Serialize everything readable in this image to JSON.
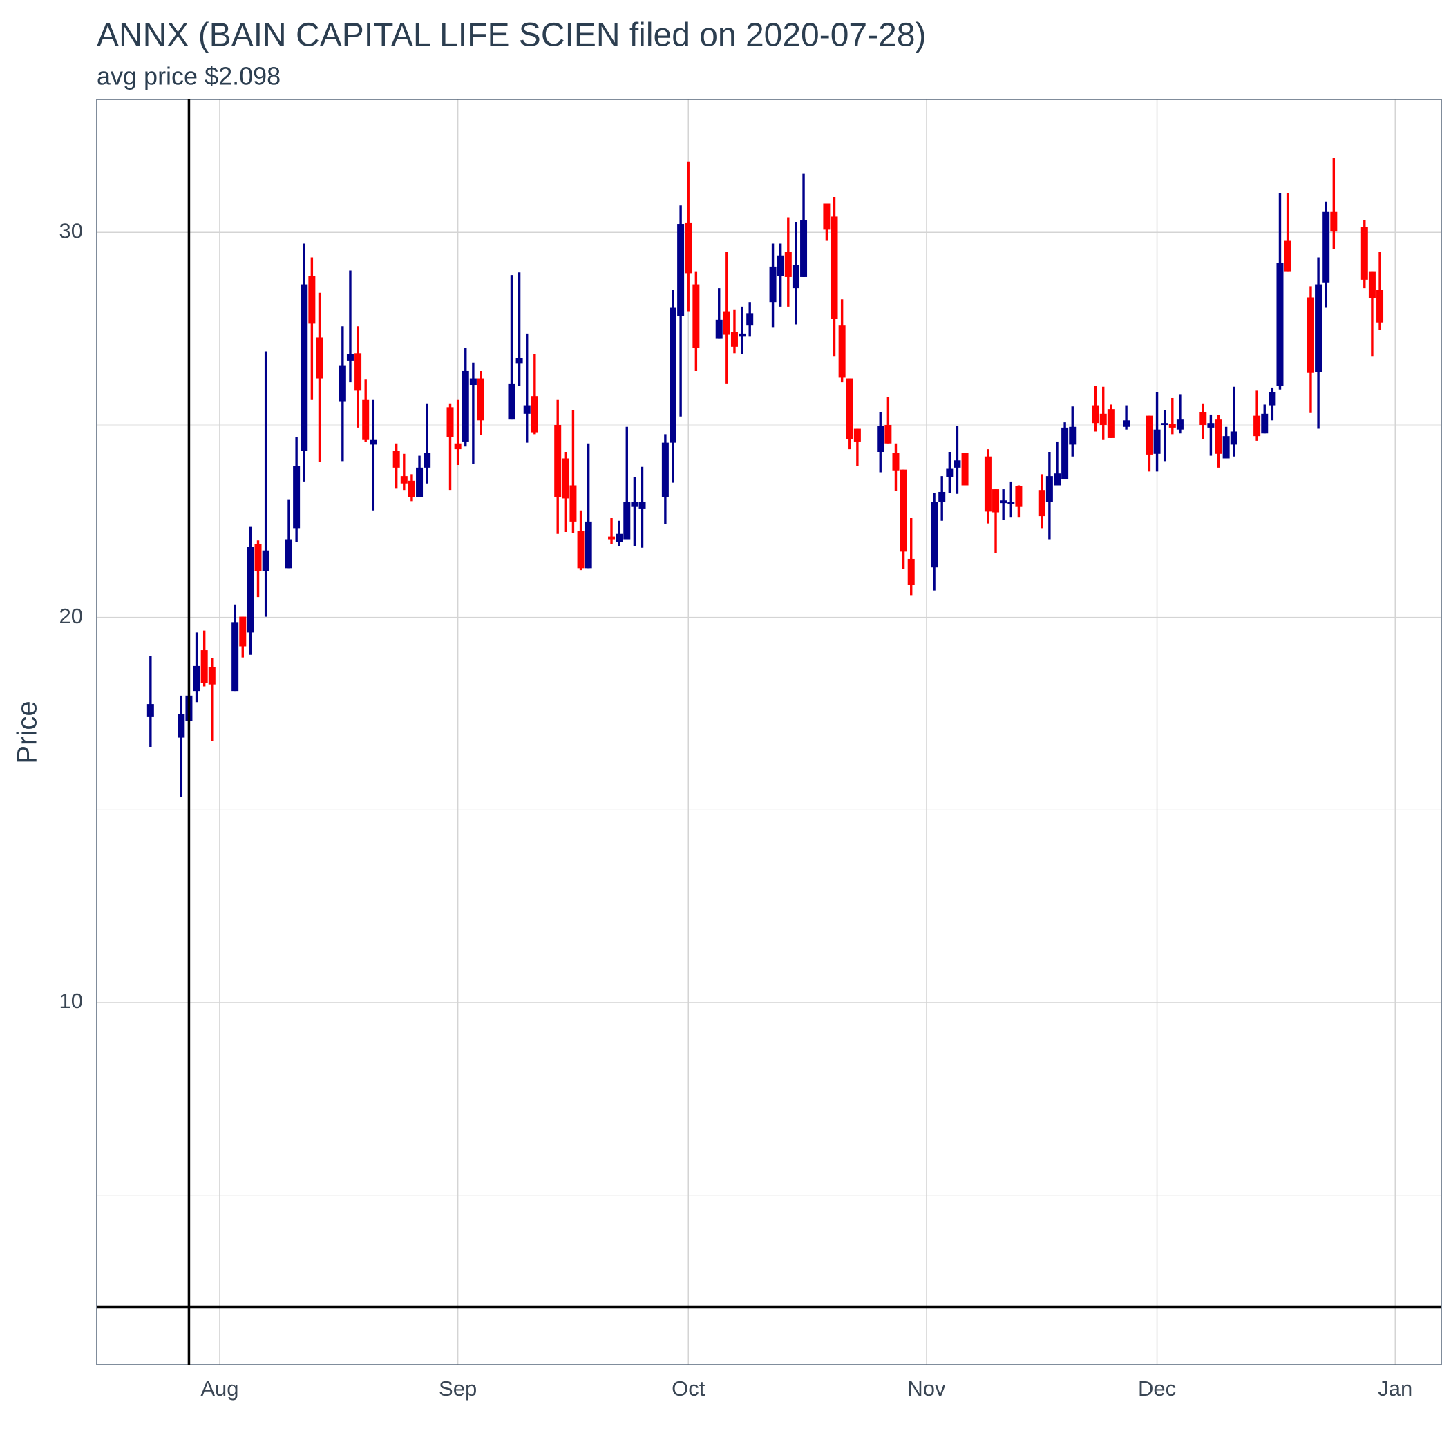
{
  "chart_data": {
    "type": "candlestick",
    "title": "ANNX (BAIN CAPITAL LIFE SCIEN filed on 2020-07-28)",
    "subtitle": "avg price $2.098",
    "ylabel": "Price",
    "x": [
      "2020-07-23",
      "2020-07-27",
      "2020-07-28",
      "2020-07-29",
      "2020-07-30",
      "2020-07-31",
      "2020-08-03",
      "2020-08-04",
      "2020-08-05",
      "2020-08-06",
      "2020-08-07",
      "2020-08-10",
      "2020-08-11",
      "2020-08-12",
      "2020-08-13",
      "2020-08-14",
      "2020-08-17",
      "2020-08-18",
      "2020-08-19",
      "2020-08-20",
      "2020-08-21",
      "2020-08-24",
      "2020-08-25",
      "2020-08-26",
      "2020-08-27",
      "2020-08-28",
      "2020-08-31",
      "2020-09-01",
      "2020-09-02",
      "2020-09-03",
      "2020-09-04",
      "2020-09-08",
      "2020-09-09",
      "2020-09-10",
      "2020-09-11",
      "2020-09-14",
      "2020-09-15",
      "2020-09-16",
      "2020-09-17",
      "2020-09-18",
      "2020-09-21",
      "2020-09-22",
      "2020-09-23",
      "2020-09-24",
      "2020-09-25",
      "2020-09-28",
      "2020-09-29",
      "2020-09-30",
      "2020-10-01",
      "2020-10-02",
      "2020-10-05",
      "2020-10-06",
      "2020-10-07",
      "2020-10-08",
      "2020-10-09",
      "2020-10-12",
      "2020-10-13",
      "2020-10-14",
      "2020-10-15",
      "2020-10-16",
      "2020-10-19",
      "2020-10-20",
      "2020-10-21",
      "2020-10-22",
      "2020-10-23",
      "2020-10-26",
      "2020-10-27",
      "2020-10-28",
      "2020-10-29",
      "2020-10-30",
      "2020-11-02",
      "2020-11-03",
      "2020-11-04",
      "2020-11-05",
      "2020-11-06",
      "2020-11-09",
      "2020-11-10",
      "2020-11-11",
      "2020-11-12",
      "2020-11-13",
      "2020-11-16",
      "2020-11-17",
      "2020-11-18",
      "2020-11-19",
      "2020-11-20",
      "2020-11-23",
      "2020-11-24",
      "2020-11-25",
      "2020-11-27",
      "2020-11-30",
      "2020-12-01",
      "2020-12-02",
      "2020-12-03",
      "2020-12-04",
      "2020-12-07",
      "2020-12-08",
      "2020-12-09",
      "2020-12-10",
      "2020-12-11",
      "2020-12-14",
      "2020-12-15",
      "2020-12-16",
      "2020-12-17",
      "2020-12-18",
      "2020-12-21",
      "2020-12-22",
      "2020-12-23",
      "2020-12-24",
      "2020-12-28",
      "2020-12-29",
      "2020-12-30"
    ],
    "open": [
      17.43,
      16.88,
      17.32,
      18.09,
      19.15,
      18.72,
      18.09,
      20.02,
      19.61,
      21.91,
      21.21,
      21.28,
      22.32,
      24.32,
      28.86,
      27.27,
      25.6,
      26.67,
      26.86,
      25.65,
      24.49,
      24.32,
      23.67,
      23.55,
      23.12,
      23.89,
      25.46,
      24.52,
      24.57,
      26.04,
      26.21,
      25.14,
      26.59,
      25.29,
      25.75,
      25.0,
      24.13,
      23.43,
      22.25,
      21.28,
      22.1,
      21.96,
      22.03,
      22.87,
      22.83,
      23.12,
      24.54,
      27.83,
      30.24,
      28.65,
      27.25,
      27.95,
      27.42,
      27.29,
      27.58,
      28.19,
      28.86,
      29.49,
      28.55,
      28.84,
      30.75,
      30.41,
      27.58,
      26.21,
      24.9,
      24.3,
      25.0,
      24.28,
      23.84,
      21.52,
      21.3,
      23.0,
      23.65,
      23.89,
      24.28,
      24.18,
      23.33,
      22.97,
      22.95,
      23.41,
      23.31,
      23.0,
      23.43,
      23.6,
      24.49,
      25.51,
      25.29,
      25.41,
      24.95,
      25.24,
      24.25,
      25.0,
      25.02,
      24.88,
      25.34,
      24.93,
      25.14,
      24.13,
      24.49,
      25.24,
      24.78,
      25.51,
      26.01,
      29.78,
      28.31,
      26.38,
      28.7,
      30.53,
      30.14,
      28.99,
      28.5
    ],
    "high": [
      19.0,
      17.97,
      17.97,
      19.61,
      19.66,
      18.94,
      20.34,
      20.02,
      22.37,
      22.0,
      26.91,
      23.07,
      24.69,
      29.71,
      29.35,
      28.43,
      27.56,
      29.01,
      27.56,
      26.18,
      25.65,
      24.52,
      24.25,
      23.72,
      24.2,
      25.56,
      25.56,
      25.65,
      27.0,
      26.62,
      26.4,
      28.89,
      28.96,
      27.37,
      26.84,
      25.65,
      24.3,
      25.39,
      22.78,
      24.52,
      22.58,
      22.51,
      24.95,
      23.65,
      23.91,
      24.76,
      28.5,
      30.7,
      31.84,
      28.99,
      28.55,
      29.49,
      28.0,
      28.07,
      28.19,
      29.71,
      29.71,
      30.39,
      30.27,
      31.52,
      30.75,
      30.92,
      28.26,
      26.21,
      24.9,
      25.34,
      25.72,
      24.52,
      23.84,
      22.58,
      23.24,
      23.67,
      24.3,
      24.98,
      24.28,
      24.37,
      23.33,
      23.33,
      23.53,
      23.43,
      23.72,
      24.3,
      24.57,
      25.07,
      25.48,
      26.01,
      25.99,
      25.53,
      25.51,
      25.24,
      25.85,
      25.39,
      25.7,
      25.8,
      25.56,
      25.27,
      25.27,
      24.95,
      25.99,
      25.89,
      25.53,
      25.97,
      31.01,
      31.01,
      28.6,
      29.35,
      30.8,
      31.93,
      30.31,
      28.99,
      29.49
    ],
    "low": [
      16.64,
      15.34,
      17.32,
      17.8,
      18.21,
      16.79,
      18.09,
      18.96,
      19.03,
      20.53,
      20.02,
      21.28,
      21.96,
      23.53,
      25.65,
      24.03,
      24.06,
      26.11,
      24.93,
      24.57,
      22.78,
      23.36,
      23.31,
      23.02,
      23.12,
      23.48,
      23.31,
      23.96,
      24.44,
      23.99,
      24.73,
      25.14,
      26.01,
      24.54,
      24.76,
      22.17,
      22.22,
      22.2,
      21.23,
      21.28,
      21.91,
      21.86,
      22.03,
      21.86,
      21.81,
      22.42,
      23.5,
      25.22,
      27.95,
      26.4,
      27.25,
      26.06,
      26.86,
      26.84,
      27.29,
      27.54,
      28.07,
      28.07,
      27.61,
      28.84,
      29.78,
      26.79,
      26.11,
      24.37,
      23.94,
      23.77,
      24.52,
      23.29,
      21.26,
      20.58,
      20.7,
      22.51,
      23.24,
      23.21,
      23.43,
      22.44,
      21.67,
      22.54,
      22.61,
      22.61,
      22.32,
      22.03,
      23.43,
      23.6,
      24.18,
      24.83,
      24.61,
      24.66,
      24.88,
      23.79,
      23.79,
      24.06,
      24.76,
      24.78,
      24.64,
      24.2,
      23.89,
      24.13,
      24.18,
      24.59,
      24.78,
      25.12,
      25.92,
      28.99,
      25.31,
      24.9,
      28.04,
      29.57,
      28.55,
      26.79,
      27.46
    ],
    "close": [
      17.75,
      17.49,
      17.97,
      18.74,
      18.29,
      18.26,
      19.88,
      19.25,
      21.84,
      21.21,
      21.74,
      22.03,
      23.94,
      28.65,
      27.63,
      26.21,
      26.55,
      26.84,
      25.89,
      24.61,
      24.61,
      23.89,
      23.48,
      23.12,
      23.89,
      24.28,
      24.69,
      24.37,
      26.4,
      26.21,
      25.12,
      26.06,
      26.74,
      25.51,
      24.81,
      23.12,
      23.09,
      22.49,
      21.28,
      22.49,
      22.03,
      22.17,
      23.0,
      23.0,
      23.0,
      24.54,
      28.04,
      30.22,
      28.94,
      27.0,
      27.73,
      27.34,
      27.03,
      27.37,
      27.9,
      29.11,
      29.4,
      28.84,
      29.15,
      30.31,
      30.07,
      27.75,
      26.23,
      24.64,
      24.57,
      24.98,
      24.52,
      23.82,
      21.71,
      20.85,
      23.0,
      23.26,
      23.86,
      24.08,
      23.43,
      22.75,
      22.73,
      23.04,
      23.0,
      22.87,
      22.63,
      23.67,
      23.74,
      24.93,
      24.95,
      25.05,
      25.0,
      24.66,
      25.12,
      24.23,
      24.88,
      25.05,
      24.93,
      25.14,
      25.0,
      25.05,
      24.25,
      24.71,
      24.83,
      24.71,
      25.29,
      25.85,
      29.2,
      28.99,
      26.35,
      28.65,
      30.53,
      30.02,
      28.77,
      28.29,
      27.66
    ],
    "up_color": "#00008b",
    "down_color": "#ff0000",
    "xlim": [
      "2020-07-16",
      "2021-01-07"
    ],
    "xticks": [
      {
        "value": "2020-08-01",
        "label": "Aug"
      },
      {
        "value": "2020-09-01",
        "label": "Sep"
      },
      {
        "value": "2020-10-01",
        "label": "Oct"
      },
      {
        "value": "2020-11-01",
        "label": "Nov"
      },
      {
        "value": "2020-12-01",
        "label": "Dec"
      },
      {
        "value": "2021-01-01",
        "label": "Jan"
      }
    ],
    "ylim": [
      0.6,
      33.45
    ],
    "yticks": [
      10,
      20,
      30
    ],
    "yminor": [
      5,
      15,
      25
    ],
    "grid": true,
    "hline": 2.098,
    "vline": "2020-07-28",
    "line_color": "#000000"
  }
}
